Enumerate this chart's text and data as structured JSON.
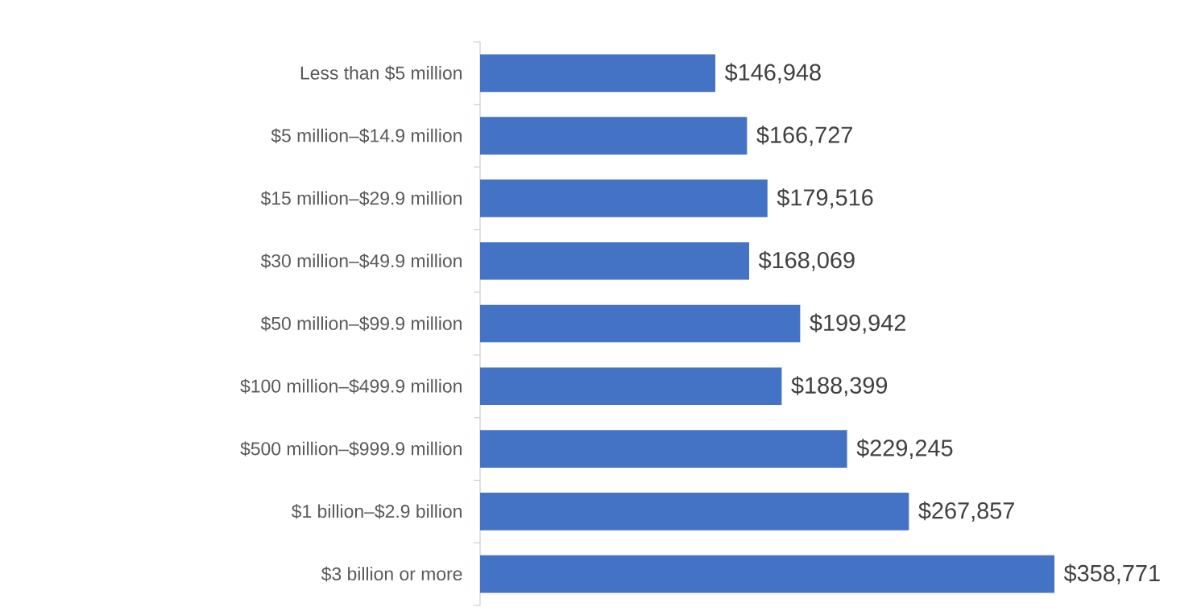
{
  "chart_data": {
    "type": "bar",
    "orientation": "horizontal",
    "categories": [
      "Less than $5 million",
      "$5 million–$14.9 million",
      "$15 million–$29.9 million",
      "$30 million–$49.9 million",
      "$50 million–$99.9 million",
      "$100 million–$499.9 million",
      "$500 million–$999.9 million",
      "$1 billion–$2.9 billion",
      "$3 billion or more"
    ],
    "values": [
      146948,
      166727,
      179516,
      168069,
      199942,
      188399,
      229245,
      267857,
      358771
    ],
    "value_labels": [
      "$146,948",
      "$166,727",
      "$179,516",
      "$168,069",
      "$199,942",
      "$188,399",
      "$229,245",
      "$267,857",
      "$358,771"
    ],
    "color": "#4472c4"
  }
}
